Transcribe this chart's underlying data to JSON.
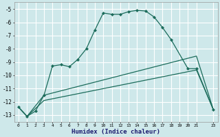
{
  "xlabel": "Humidex (Indice chaleur)",
  "bg_color": "#cee8ea",
  "grid_color": "#b0d0d8",
  "line_color": "#1a6b5a",
  "xlim": [
    -0.5,
    23.5
  ],
  "ylim": [
    -13.5,
    -4.5
  ],
  "yticks": [
    -5,
    -6,
    -7,
    -8,
    -9,
    -10,
    -11,
    -12,
    -13
  ],
  "xticks": [
    0,
    1,
    2,
    3,
    4,
    5,
    6,
    7,
    8,
    9,
    10,
    11,
    12,
    13,
    14,
    15,
    16,
    17,
    18,
    19,
    20,
    21,
    23
  ],
  "line1_x": [
    0,
    1,
    2,
    3,
    4,
    5,
    6,
    7,
    8,
    9,
    10,
    11,
    12,
    13,
    14,
    15,
    16,
    17,
    18,
    20,
    21,
    23
  ],
  "line1_y": [
    -12.4,
    -13.1,
    -12.7,
    -11.5,
    -9.3,
    -9.2,
    -9.35,
    -8.8,
    -8.0,
    -6.6,
    -5.3,
    -5.4,
    -5.4,
    -5.2,
    -5.1,
    -5.15,
    -5.6,
    -6.4,
    -7.3,
    -9.5,
    -9.5,
    -12.6
  ],
  "line2_x": [
    0,
    1,
    3,
    21,
    23
  ],
  "line2_y": [
    -12.4,
    -13.1,
    -11.5,
    -8.55,
    -12.6
  ],
  "line3_x": [
    0,
    1,
    3,
    21,
    23
  ],
  "line3_y": [
    -12.4,
    -13.1,
    -11.9,
    -9.6,
    -12.6
  ]
}
